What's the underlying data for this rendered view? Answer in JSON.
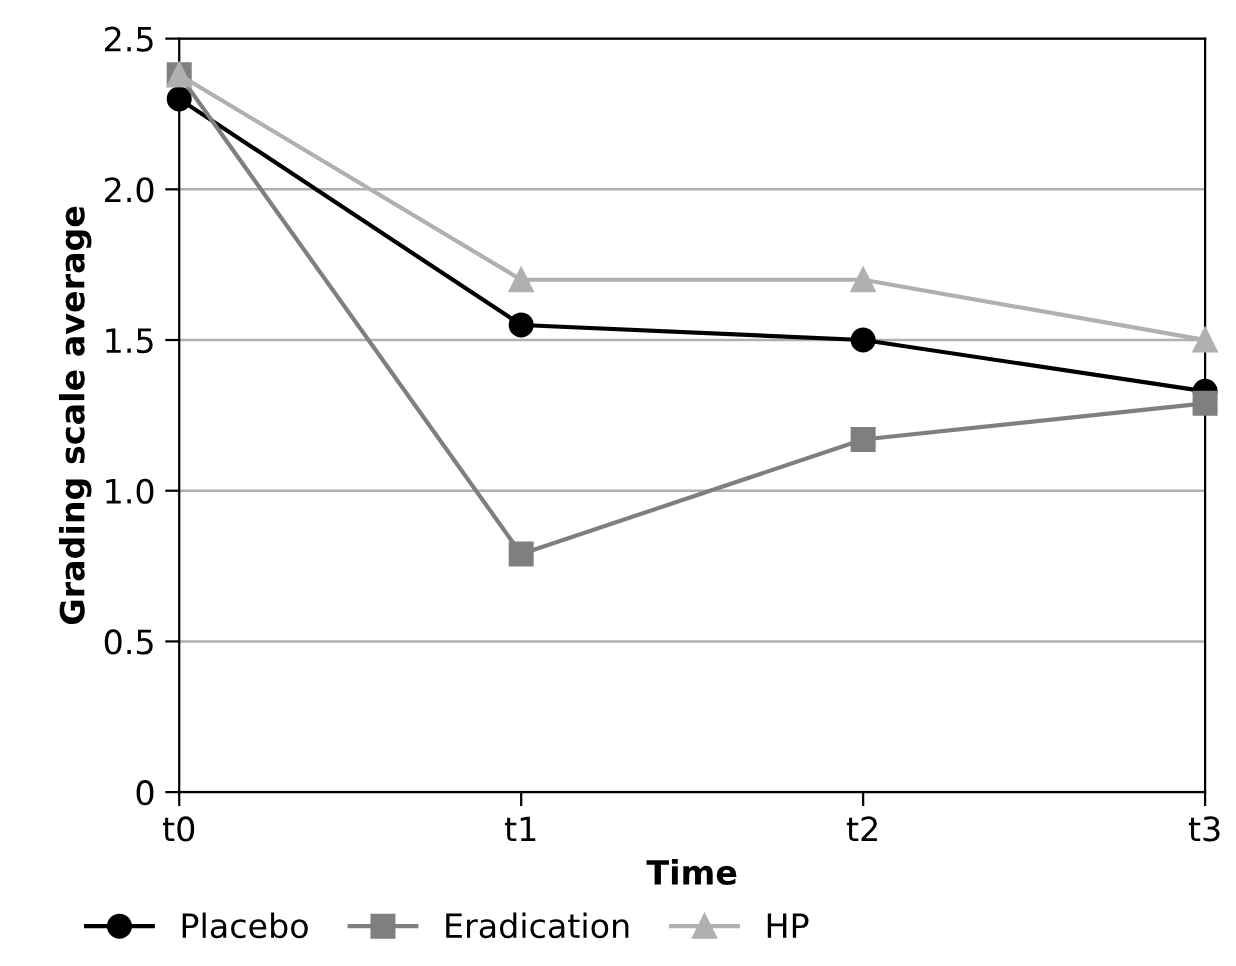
{
  "chart_data": {
    "type": "line",
    "xlabel": "Time",
    "ylabel": "Grading scale average",
    "categories": [
      "t0",
      "t1",
      "t2",
      "t3"
    ],
    "series": [
      {
        "name": "Placebo",
        "color": "#000000",
        "marker": "circle",
        "values": [
          2.3,
          1.55,
          1.5,
          1.33
        ]
      },
      {
        "name": "Eradication",
        "color": "#7f7f7f",
        "marker": "square",
        "values": [
          2.38,
          0.79,
          1.17,
          1.29
        ]
      },
      {
        "name": "HP",
        "color": "#b0b0b0",
        "marker": "triangle",
        "values": [
          2.38,
          1.7,
          1.7,
          1.5
        ]
      }
    ],
    "ylim": [
      0,
      2.5
    ],
    "yticks": [
      0,
      0.5,
      {
        "value": 1.0,
        "label": "1.0"
      },
      1.5,
      {
        "value": 2.0,
        "label": "2.0"
      },
      2.5
    ],
    "grid": "y",
    "legend": "bottom",
    "line_style": "solid"
  }
}
